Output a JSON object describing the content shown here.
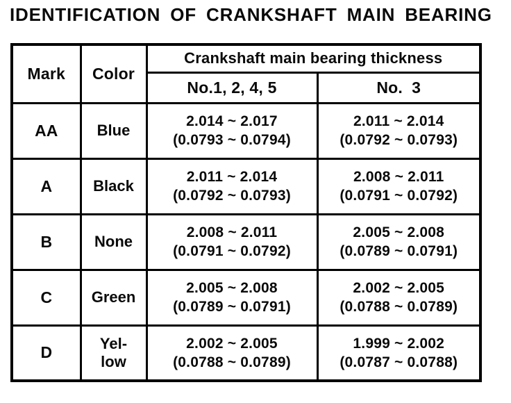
{
  "title": "IDENTIFICATION OF CRANKSHAFT MAIN BEARING",
  "table": {
    "col_mark": "Mark",
    "col_color": "Color",
    "group_header": "Crankshaft main bearing thickness",
    "subcol_1245": "No.1, 2, 4, 5",
    "subcol_3": "No.  3",
    "rows": [
      {
        "mark": "AA",
        "color": "Blue",
        "n1245": "2.014 ~ 2.017\n(0.0793 ~ 0.0794)",
        "n3": "2.011 ~ 2.014\n(0.0792 ~ 0.0793)"
      },
      {
        "mark": "A",
        "color": "Black",
        "n1245": "2.011 ~ 2.014\n(0.0792 ~ 0.0793)",
        "n3": "2.008 ~ 2.011\n(0.0791 ~ 0.0792)"
      },
      {
        "mark": "B",
        "color": "None",
        "n1245": "2.008 ~ 2.011\n(0.0791 ~ 0.0792)",
        "n3": "2.005 ~ 2.008\n(0.0789 ~ 0.0791)"
      },
      {
        "mark": "C",
        "color": "Green",
        "n1245": "2.005 ~ 2.008\n(0.0789 ~ 0.0791)",
        "n3": "2.002 ~ 2.005\n(0.0788 ~ 0.0789)"
      },
      {
        "mark": "D",
        "color": "Yel-\nlow",
        "n1245": "2.002 ~ 2.005\n(0.0788 ~ 0.0789)",
        "n3": "1.999 ~ 2.002\n(0.0787 ~ 0.0788)"
      }
    ]
  }
}
